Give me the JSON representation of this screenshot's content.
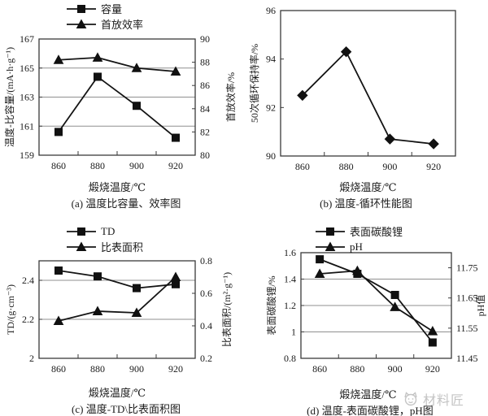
{
  "colors": {
    "line": "#141414",
    "grid": "#8f8f8f",
    "frame": "#3a3a3a",
    "marker": "#111111",
    "watermark": "#c4c4c4",
    "background": "#ffffff"
  },
  "watermark": {
    "text": "材料匠",
    "logo": "cat-face-logo"
  },
  "chart_data": [
    {
      "id": "a",
      "type": "line",
      "caption": "(a) 温度比容量、效率图",
      "xlabel": "煅烧温度/℃",
      "categories": [
        860,
        880,
        900,
        920
      ],
      "show_legend": true,
      "legend_position": "top-left",
      "left_axis": {
        "label": "温度-比容量/(mA·h·g⁻¹)",
        "min": 159,
        "max": 167,
        "ticks": [
          159,
          161,
          163,
          165,
          167
        ],
        "gridlines": [
          161,
          163,
          165
        ]
      },
      "right_axis": {
        "label": "首放效率/%",
        "min": 80,
        "max": 90,
        "ticks": [
          80,
          82,
          84,
          86,
          88,
          90
        ]
      },
      "series": [
        {
          "name": "容量",
          "marker": "square",
          "axis": "left",
          "values": [
            160.6,
            164.4,
            162.4,
            160.2
          ]
        },
        {
          "name": "首放效率",
          "marker": "triangle",
          "axis": "right",
          "values": [
            88.2,
            88.4,
            87.5,
            87.2
          ]
        }
      ]
    },
    {
      "id": "b",
      "type": "line",
      "caption": "(b) 温度-循环性能图",
      "xlabel": "煅烧温度/℃",
      "categories": [
        860,
        880,
        900,
        920
      ],
      "show_legend": false,
      "left_axis": {
        "label": "50次循环保持率/%",
        "min": 90,
        "max": 96,
        "ticks": [
          90,
          92,
          94,
          96
        ],
        "gridlines": []
      },
      "series": [
        {
          "name": "50次循环保持率",
          "marker": "diamond",
          "axis": "left",
          "values": [
            92.5,
            94.3,
            90.7,
            90.5
          ]
        }
      ]
    },
    {
      "id": "c",
      "type": "line",
      "caption": "(c) 温度-TD\\比表面积图",
      "xlabel": "煅烧温度/℃",
      "categories": [
        860,
        880,
        900,
        920
      ],
      "show_legend": true,
      "legend_position": "top-left",
      "left_axis": {
        "label": "TD/(g·cm⁻³)",
        "min": 2.0,
        "max": 2.5,
        "ticks": [
          2,
          2.2,
          2.4
        ],
        "gridlines": [
          2.2,
          2.4
        ]
      },
      "right_axis": {
        "label": "比表面积/(m²·g⁻¹)",
        "min": 0.2,
        "max": 0.8,
        "ticks": [
          0.2,
          0.4,
          0.6,
          0.8
        ]
      },
      "series": [
        {
          "name": "TD",
          "marker": "square",
          "axis": "left",
          "values": [
            2.45,
            2.42,
            2.36,
            2.38
          ]
        },
        {
          "name": "比表面积",
          "marker": "triangle",
          "axis": "right",
          "values": [
            0.43,
            0.49,
            0.48,
            0.7
          ]
        }
      ]
    },
    {
      "id": "d",
      "type": "line",
      "caption": "(d) 温度-表面碳酸锂，pH图",
      "xlabel": "煅烧温度/℃",
      "categories": [
        860,
        880,
        900,
        920
      ],
      "show_legend": true,
      "legend_position": "top-left",
      "left_axis": {
        "label": "表面碳酸锂/%",
        "min": 0.8,
        "max": 1.6,
        "ticks": [
          0.8,
          1,
          1.2,
          1.4,
          1.6
        ],
        "gridlines": [
          1,
          1.2,
          1.4
        ]
      },
      "right_axis": {
        "label": "pH值",
        "min": 11.45,
        "max": 11.8,
        "ticks": [
          11.45,
          11.55,
          11.65,
          11.75
        ]
      },
      "series": [
        {
          "name": "表面碳酸锂",
          "marker": "square",
          "axis": "left",
          "values": [
            1.55,
            1.44,
            1.28,
            0.92
          ]
        },
        {
          "name": "pH",
          "marker": "triangle",
          "axis": "right",
          "values": [
            11.73,
            11.74,
            11.62,
            11.54
          ]
        }
      ]
    }
  ]
}
